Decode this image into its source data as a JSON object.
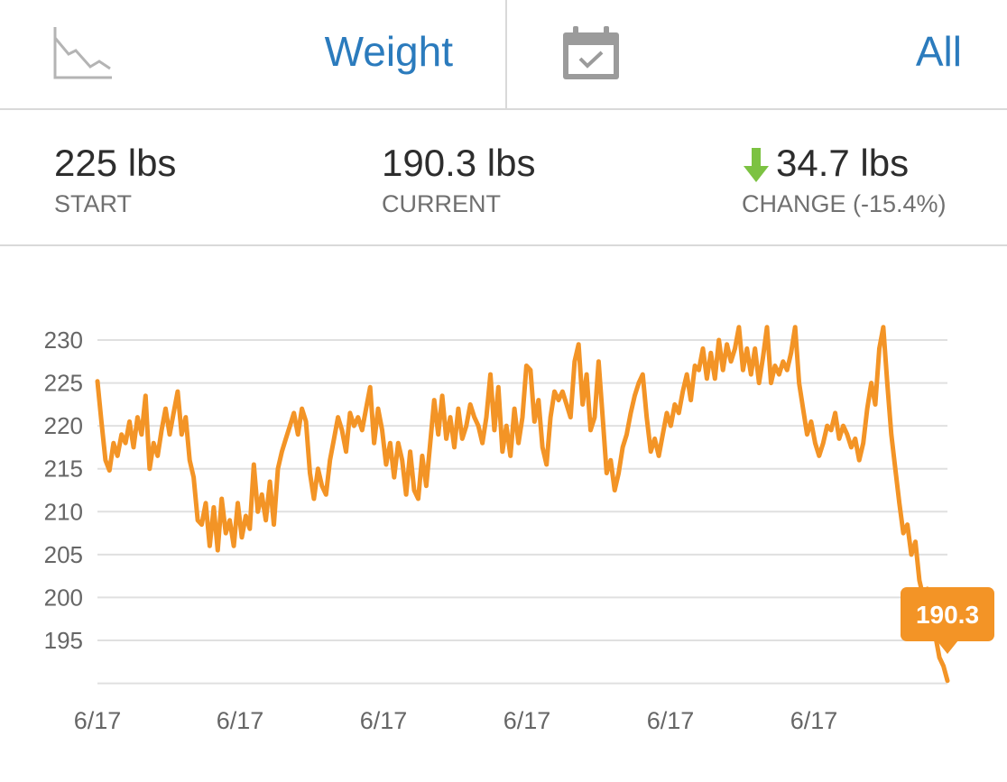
{
  "header": {
    "metric_icon": "trend-down-chart-icon",
    "metric_label": "Weight",
    "date_icon": "calendar-check-icon",
    "range_label": "All"
  },
  "stats": {
    "start": {
      "value": "225 lbs",
      "label": "START"
    },
    "current": {
      "value": "190.3 lbs",
      "label": "CURRENT"
    },
    "change": {
      "value": "34.7 lbs",
      "label": "CHANGE (-15.4%)",
      "icon": "down-arrow-icon"
    }
  },
  "colors": {
    "accent_blue": "#2b7bbd",
    "line": "#f39426",
    "arrow_green": "#7cc242",
    "grid": "#e0e0e0",
    "divider": "#d9d9d9"
  },
  "chart_data": {
    "type": "line",
    "title": "",
    "xlabel": "",
    "ylabel": "",
    "ylim": [
      190,
      231
    ],
    "yticks": [
      230,
      225,
      220,
      215,
      210,
      205,
      200,
      195
    ],
    "xtick_labels": [
      "6/17",
      "6/17",
      "6/17",
      "6/17",
      "6/17",
      "6/17"
    ],
    "grid": true,
    "current_callout": "190.3",
    "series": [
      {
        "values": [
          225.2,
          220.5,
          216.0,
          214.8,
          218.0,
          216.5,
          219.0,
          218.0,
          220.5,
          217.5,
          221.0,
          219.0,
          223.5,
          215.0,
          218.0,
          216.5,
          219.5,
          222.0,
          219.0,
          221.5,
          224.0,
          219.0,
          221.0,
          216.0,
          214.0,
          209.0,
          208.5,
          211.0,
          206.0,
          210.5,
          205.5,
          211.5,
          207.5,
          209.0,
          206.0,
          211.0,
          207.0,
          209.5,
          208.0,
          215.5,
          210.0,
          212.0,
          209.0,
          213.5,
          208.5,
          215.0,
          217.0,
          218.5,
          220.0,
          221.5,
          219.0,
          222.0,
          220.5,
          214.5,
          211.5,
          215.0,
          213.0,
          212.0,
          216.0,
          218.5,
          221.0,
          219.5,
          217.0,
          221.5,
          220.0,
          221.0,
          219.5,
          222.0,
          224.5,
          218.0,
          222.0,
          219.5,
          215.5,
          218.0,
          214.0,
          218.0,
          216.0,
          212.0,
          217.0,
          212.5,
          211.5,
          216.5,
          213.0,
          218.0,
          223.0,
          219.0,
          223.5,
          218.5,
          221.0,
          217.5,
          222.0,
          218.5,
          220.0,
          222.5,
          221.0,
          220.0,
          218.0,
          221.0,
          226.0,
          219.5,
          224.5,
          217.0,
          220.0,
          216.5,
          222.0,
          218.0,
          221.0,
          227.0,
          226.5,
          220.5,
          223.0,
          217.5,
          215.5,
          221.0,
          224.0,
          223.0,
          224.0,
          222.5,
          221.0,
          227.5,
          229.5,
          222.5,
          226.0,
          219.5,
          221.0,
          227.5,
          221.0,
          214.5,
          216.0,
          212.5,
          214.5,
          217.5,
          219.0,
          221.5,
          223.5,
          225.0,
          226.0,
          221.0,
          217.0,
          218.5,
          216.5,
          219.0,
          221.5,
          220.0,
          222.5,
          221.5,
          224.0,
          226.0,
          223.0,
          227.0,
          226.5,
          229.0,
          225.5,
          228.5,
          225.5,
          230.0,
          226.5,
          229.5,
          227.5,
          229.0,
          231.5,
          226.5,
          229.0,
          226.0,
          229.0,
          225.0,
          228.0,
          231.5,
          225.0,
          227.0,
          226.0,
          227.5,
          226.5,
          228.5,
          231.5,
          225.0,
          222.0,
          219.0,
          220.5,
          218.0,
          216.5,
          218.0,
          220.0,
          219.5,
          221.5,
          218.5,
          220.0,
          219.0,
          217.5,
          218.5,
          216.0,
          218.0,
          222.0,
          225.0,
          222.5,
          229.0,
          231.5,
          225.0,
          219.0,
          215.0,
          211.0,
          207.5,
          208.5,
          205.0,
          206.5,
          202.0,
          200.0,
          201.0,
          198.0,
          195.5,
          193.0,
          192.0,
          190.3
        ]
      }
    ]
  }
}
